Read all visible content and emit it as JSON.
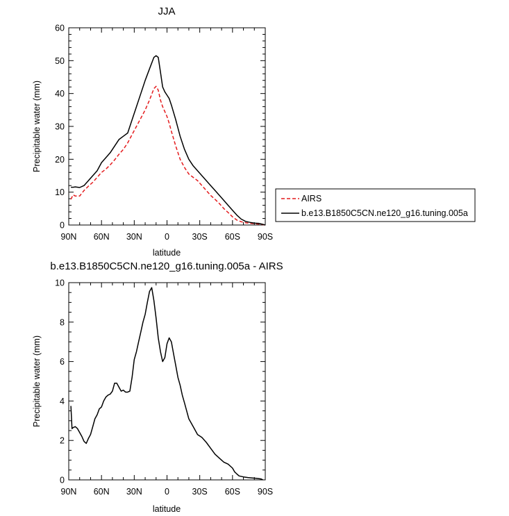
{
  "chart_data": [
    {
      "type": "line",
      "title": "JJA",
      "xlabel": "latitude",
      "ylabel": "Precipitable water (mm)",
      "xlim": [
        90,
        -90
      ],
      "ylim": [
        0,
        60
      ],
      "xticks": [
        90,
        60,
        30,
        0,
        -30,
        -60,
        -90
      ],
      "xtick_labels": [
        "90N",
        "60N",
        "30N",
        "0",
        "30S",
        "60S",
        "90S"
      ],
      "yticks": [
        0,
        10,
        20,
        30,
        40,
        50,
        60
      ],
      "ytick_labels": [
        "0",
        "10",
        "20",
        "30",
        "40",
        "50",
        "60"
      ],
      "legend_position": "right",
      "series": [
        {
          "name": "AIRS",
          "color": "#e41a1c",
          "dash": "dashed",
          "x": [
            88,
            86,
            84,
            80,
            76,
            72,
            68,
            64,
            60,
            56,
            52,
            48,
            44,
            40,
            36,
            32,
            28,
            24,
            20,
            16,
            12,
            10,
            8,
            6,
            4,
            2,
            0,
            -2,
            -4,
            -8,
            -12,
            -16,
            -20,
            -24,
            -28,
            -32,
            -36,
            -40,
            -44,
            -48,
            -52,
            -56,
            -60,
            -64,
            -68,
            -72,
            -76,
            -80,
            -84,
            -88,
            -90
          ],
          "values": [
            7.8,
            9.2,
            8.8,
            8.8,
            10.5,
            11.8,
            13,
            14.5,
            16,
            17,
            18.3,
            19.8,
            21.5,
            23,
            25,
            27.5,
            30,
            32.5,
            35,
            38,
            41.5,
            42.2,
            41,
            38,
            36,
            34.5,
            33,
            31,
            28.5,
            24,
            20,
            17.5,
            15.5,
            14.5,
            13.5,
            12,
            10.5,
            9,
            7.8,
            6.5,
            5,
            3.8,
            2.5,
            1.5,
            1,
            0.7,
            0.5,
            0.4,
            0.3,
            0.1,
            0
          ]
        },
        {
          "name": "b.e13.B1850C5CN.ne120_g16.tuning.005a",
          "color": "#000000",
          "dash": "solid",
          "x": [
            88,
            86,
            84,
            80,
            76,
            72,
            68,
            64,
            60,
            56,
            52,
            48,
            44,
            40,
            36,
            32,
            28,
            24,
            20,
            16,
            12,
            10,
            8,
            6,
            4,
            2,
            0,
            -2,
            -4,
            -8,
            -12,
            -16,
            -20,
            -24,
            -28,
            -32,
            -36,
            -40,
            -44,
            -48,
            -52,
            -56,
            -60,
            -64,
            -68,
            -72,
            -76,
            -80,
            -84,
            -88,
            -90
          ],
          "values": [
            11.5,
            11.5,
            11.6,
            11.4,
            12,
            13.5,
            15,
            16.5,
            19,
            20.5,
            22,
            24,
            26,
            27,
            28,
            32,
            36,
            40,
            44,
            47.5,
            51,
            51.5,
            51,
            46.5,
            42,
            40.5,
            39.5,
            38.5,
            36.5,
            32,
            27,
            23,
            20,
            18,
            16.5,
            15,
            13.5,
            12,
            10.5,
            9,
            7.5,
            6,
            4.5,
            3,
            1.8,
            1.1,
            0.8,
            0.6,
            0.5,
            0.2,
            0
          ]
        }
      ]
    },
    {
      "type": "line",
      "title": "b.e13.B1850C5CN.ne120_g16.tuning.005a - AIRS",
      "xlabel": "latitude",
      "ylabel": "Precipitable water (mm)",
      "xlim": [
        90,
        -90
      ],
      "ylim": [
        0,
        10
      ],
      "xticks": [
        90,
        60,
        30,
        0,
        -30,
        -60,
        -90
      ],
      "xtick_labels": [
        "90N",
        "60N",
        "30N",
        "0",
        "30S",
        "60S",
        "90S"
      ],
      "yticks": [
        0,
        2,
        4,
        6,
        8,
        10
      ],
      "ytick_labels": [
        "0",
        "2",
        "4",
        "6",
        "8",
        "10"
      ],
      "series": [
        {
          "color": "#000000",
          "dash": "solid",
          "x": [
            88,
            87,
            86,
            84,
            82,
            80,
            78,
            76,
            74,
            72,
            70,
            68,
            66,
            64,
            62,
            60,
            58,
            56,
            54,
            52,
            50,
            48,
            46,
            44,
            42,
            40,
            38,
            36,
            34,
            32,
            30,
            28,
            26,
            24,
            22,
            20,
            18,
            16,
            14,
            12,
            10,
            8,
            6,
            4,
            2,
            0,
            -2,
            -4,
            -6,
            -8,
            -10,
            -12,
            -14,
            -16,
            -18,
            -20,
            -24,
            -28,
            -32,
            -36,
            -40,
            -44,
            -48,
            -52,
            -56,
            -60,
            -62,
            -64,
            -66,
            -70,
            -74,
            -78,
            -82,
            -86,
            -88
          ],
          "values": [
            3.75,
            2.6,
            2.65,
            2.7,
            2.6,
            2.4,
            2.2,
            1.95,
            1.85,
            2.1,
            2.3,
            2.7,
            3.1,
            3.3,
            3.6,
            3.7,
            4.0,
            4.2,
            4.3,
            4.35,
            4.5,
            4.9,
            4.9,
            4.7,
            4.5,
            4.55,
            4.45,
            4.45,
            4.5,
            5.2,
            6.1,
            6.5,
            7.0,
            7.5,
            8.0,
            8.4,
            9.0,
            9.55,
            9.75,
            9.1,
            8.2,
            7.2,
            6.5,
            6.0,
            6.2,
            6.9,
            7.2,
            7.0,
            6.4,
            5.8,
            5.2,
            4.8,
            4.3,
            3.9,
            3.5,
            3.1,
            2.7,
            2.3,
            2.15,
            1.9,
            1.6,
            1.3,
            1.1,
            0.9,
            0.8,
            0.6,
            0.4,
            0.3,
            0.2,
            0.15,
            0.12,
            0.1,
            0.08,
            0.05,
            0.0
          ]
        }
      ]
    }
  ]
}
